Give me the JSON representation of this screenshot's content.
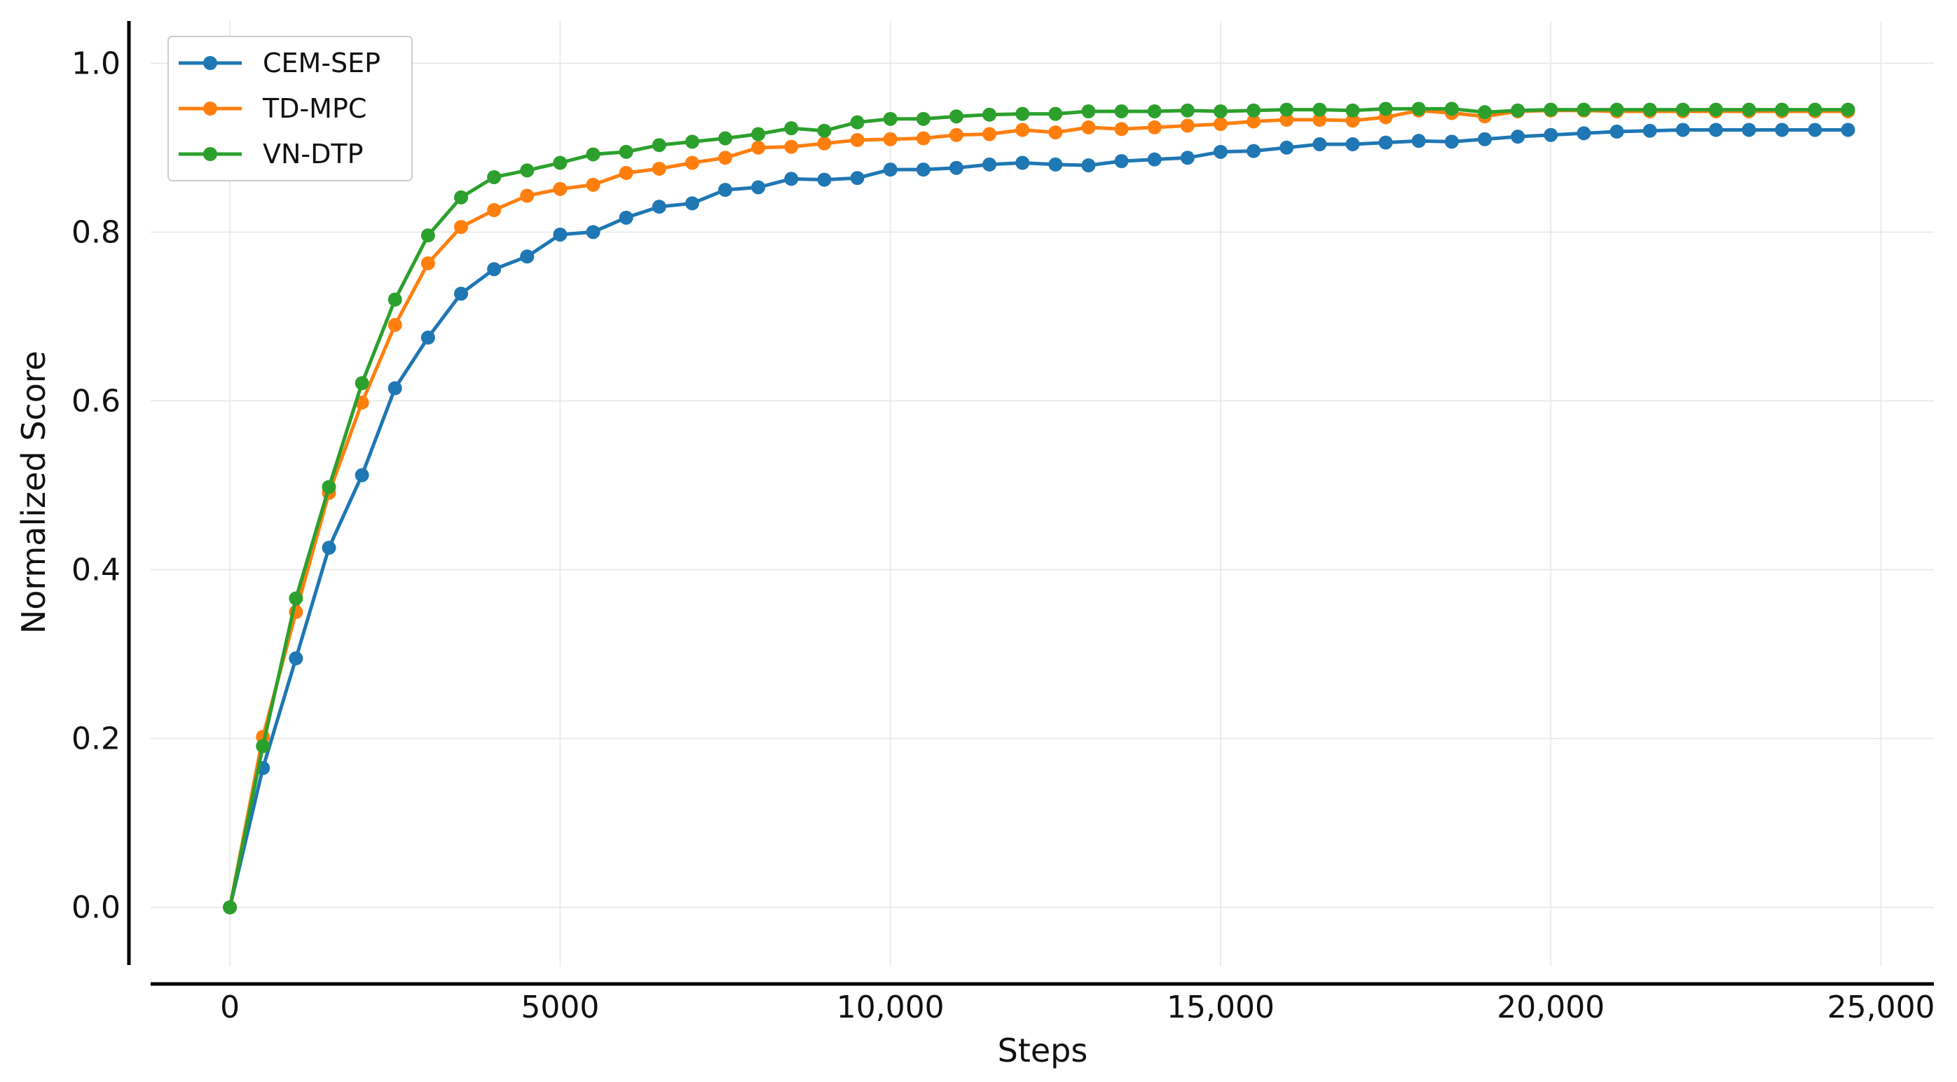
{
  "chart_data": {
    "type": "line",
    "xlabel": "Steps",
    "ylabel": "Normalized Score",
    "xlim": [
      -1200,
      25800
    ],
    "ylim": [
      -0.07,
      1.05
    ],
    "xticks": [
      0,
      5000,
      10000,
      15000,
      20000,
      25000
    ],
    "xtick_labels": [
      "0",
      "5000",
      "10,000",
      "15,000",
      "20,000",
      "25,000"
    ],
    "yticks": [
      0.0,
      0.2,
      0.4,
      0.6,
      0.8,
      1.0
    ],
    "ytick_labels": [
      "0.0",
      "0.2",
      "0.4",
      "0.6",
      "0.8",
      "1.0"
    ],
    "grid": true,
    "legend_position": "top-left",
    "x": [
      0,
      500,
      1000,
      1500,
      2000,
      2500,
      3000,
      3500,
      4000,
      4500,
      5000,
      5500,
      6000,
      6500,
      7000,
      7500,
      8000,
      8500,
      9000,
      9500,
      10000,
      10500,
      11000,
      11500,
      12000,
      12500,
      13000,
      13500,
      14000,
      14500,
      15000,
      15500,
      16000,
      16500,
      17000,
      17500,
      18000,
      18500,
      19000,
      19500,
      20000,
      20500,
      21000,
      21500,
      22000,
      22500,
      23000,
      23500,
      24000,
      24500
    ],
    "series": [
      {
        "name": "CEM-SEP",
        "color": "#1f77b4",
        "values": [
          0.0,
          0.165,
          0.295,
          0.426,
          0.512,
          0.615,
          0.675,
          0.727,
          0.756,
          0.771,
          0.797,
          0.8,
          0.817,
          0.83,
          0.834,
          0.85,
          0.853,
          0.863,
          0.862,
          0.864,
          0.874,
          0.874,
          0.876,
          0.88,
          0.882,
          0.88,
          0.879,
          0.884,
          0.886,
          0.888,
          0.895,
          0.896,
          0.9,
          0.904,
          0.904,
          0.906,
          0.908,
          0.907,
          0.91,
          0.913,
          0.915,
          0.917,
          0.919,
          0.92,
          0.921,
          0.921,
          0.921,
          0.921,
          0.921,
          0.921
        ]
      },
      {
        "name": "TD-MPC",
        "color": "#ff7f0e",
        "values": [
          0.0,
          0.202,
          0.35,
          0.491,
          0.598,
          0.69,
          0.763,
          0.806,
          0.826,
          0.843,
          0.851,
          0.856,
          0.87,
          0.875,
          0.882,
          0.888,
          0.9,
          0.901,
          0.905,
          0.909,
          0.91,
          0.911,
          0.915,
          0.916,
          0.921,
          0.918,
          0.924,
          0.922,
          0.924,
          0.926,
          0.928,
          0.931,
          0.933,
          0.933,
          0.932,
          0.936,
          0.944,
          0.941,
          0.937,
          0.943,
          0.944,
          0.944,
          0.943,
          0.943,
          0.943,
          0.943,
          0.943,
          0.943,
          0.943,
          0.943
        ]
      },
      {
        "name": "VN-DTP",
        "color": "#2ca02c",
        "values": [
          0.0,
          0.191,
          0.366,
          0.498,
          0.621,
          0.72,
          0.796,
          0.841,
          0.865,
          0.873,
          0.882,
          0.892,
          0.895,
          0.903,
          0.907,
          0.911,
          0.916,
          0.923,
          0.92,
          0.93,
          0.934,
          0.934,
          0.937,
          0.939,
          0.94,
          0.94,
          0.943,
          0.943,
          0.943,
          0.944,
          0.943,
          0.944,
          0.945,
          0.945,
          0.944,
          0.946,
          0.946,
          0.946,
          0.942,
          0.944,
          0.945,
          0.945,
          0.945,
          0.945,
          0.945,
          0.945,
          0.945,
          0.945,
          0.945,
          0.945
        ]
      }
    ]
  }
}
